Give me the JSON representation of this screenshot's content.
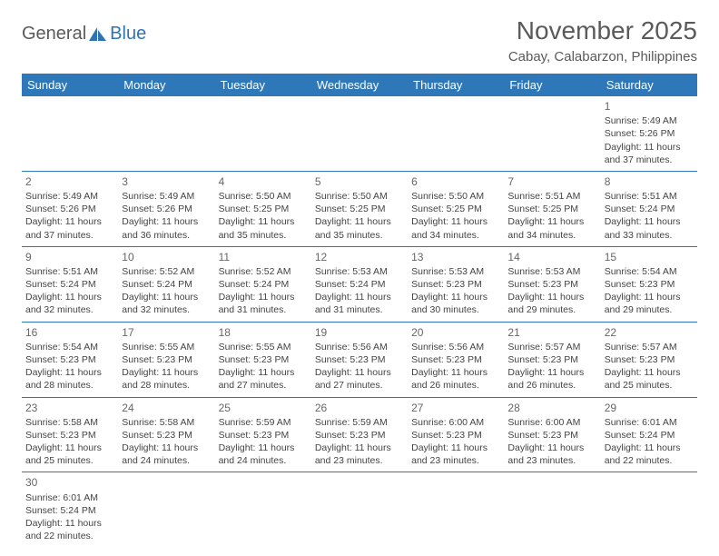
{
  "logo": {
    "part1": "General",
    "part2": "Blue"
  },
  "title": "November 2025",
  "location": "Cabay, Calabarzon, Philippines",
  "colors": {
    "header_bg": "#2e78ba",
    "header_text": "#ffffff",
    "border": "#2e78ba",
    "logo_blue": "#2e74b5",
    "logo_gray": "#5a5a5a",
    "text": "#444444"
  },
  "weekdays": [
    "Sunday",
    "Monday",
    "Tuesday",
    "Wednesday",
    "Thursday",
    "Friday",
    "Saturday"
  ],
  "weeks": [
    [
      null,
      null,
      null,
      null,
      null,
      null,
      {
        "n": "1",
        "sr": "5:49 AM",
        "ss": "5:26 PM",
        "dl": "11 hours and 37 minutes."
      }
    ],
    [
      {
        "n": "2",
        "sr": "5:49 AM",
        "ss": "5:26 PM",
        "dl": "11 hours and 37 minutes."
      },
      {
        "n": "3",
        "sr": "5:49 AM",
        "ss": "5:26 PM",
        "dl": "11 hours and 36 minutes."
      },
      {
        "n": "4",
        "sr": "5:50 AM",
        "ss": "5:25 PM",
        "dl": "11 hours and 35 minutes."
      },
      {
        "n": "5",
        "sr": "5:50 AM",
        "ss": "5:25 PM",
        "dl": "11 hours and 35 minutes."
      },
      {
        "n": "6",
        "sr": "5:50 AM",
        "ss": "5:25 PM",
        "dl": "11 hours and 34 minutes."
      },
      {
        "n": "7",
        "sr": "5:51 AM",
        "ss": "5:25 PM",
        "dl": "11 hours and 34 minutes."
      },
      {
        "n": "8",
        "sr": "5:51 AM",
        "ss": "5:24 PM",
        "dl": "11 hours and 33 minutes."
      }
    ],
    [
      {
        "n": "9",
        "sr": "5:51 AM",
        "ss": "5:24 PM",
        "dl": "11 hours and 32 minutes."
      },
      {
        "n": "10",
        "sr": "5:52 AM",
        "ss": "5:24 PM",
        "dl": "11 hours and 32 minutes."
      },
      {
        "n": "11",
        "sr": "5:52 AM",
        "ss": "5:24 PM",
        "dl": "11 hours and 31 minutes."
      },
      {
        "n": "12",
        "sr": "5:53 AM",
        "ss": "5:24 PM",
        "dl": "11 hours and 31 minutes."
      },
      {
        "n": "13",
        "sr": "5:53 AM",
        "ss": "5:23 PM",
        "dl": "11 hours and 30 minutes."
      },
      {
        "n": "14",
        "sr": "5:53 AM",
        "ss": "5:23 PM",
        "dl": "11 hours and 29 minutes."
      },
      {
        "n": "15",
        "sr": "5:54 AM",
        "ss": "5:23 PM",
        "dl": "11 hours and 29 minutes."
      }
    ],
    [
      {
        "n": "16",
        "sr": "5:54 AM",
        "ss": "5:23 PM",
        "dl": "11 hours and 28 minutes."
      },
      {
        "n": "17",
        "sr": "5:55 AM",
        "ss": "5:23 PM",
        "dl": "11 hours and 28 minutes."
      },
      {
        "n": "18",
        "sr": "5:55 AM",
        "ss": "5:23 PM",
        "dl": "11 hours and 27 minutes."
      },
      {
        "n": "19",
        "sr": "5:56 AM",
        "ss": "5:23 PM",
        "dl": "11 hours and 27 minutes."
      },
      {
        "n": "20",
        "sr": "5:56 AM",
        "ss": "5:23 PM",
        "dl": "11 hours and 26 minutes."
      },
      {
        "n": "21",
        "sr": "5:57 AM",
        "ss": "5:23 PM",
        "dl": "11 hours and 26 minutes."
      },
      {
        "n": "22",
        "sr": "5:57 AM",
        "ss": "5:23 PM",
        "dl": "11 hours and 25 minutes."
      }
    ],
    [
      {
        "n": "23",
        "sr": "5:58 AM",
        "ss": "5:23 PM",
        "dl": "11 hours and 25 minutes."
      },
      {
        "n": "24",
        "sr": "5:58 AM",
        "ss": "5:23 PM",
        "dl": "11 hours and 24 minutes."
      },
      {
        "n": "25",
        "sr": "5:59 AM",
        "ss": "5:23 PM",
        "dl": "11 hours and 24 minutes."
      },
      {
        "n": "26",
        "sr": "5:59 AM",
        "ss": "5:23 PM",
        "dl": "11 hours and 23 minutes."
      },
      {
        "n": "27",
        "sr": "6:00 AM",
        "ss": "5:23 PM",
        "dl": "11 hours and 23 minutes."
      },
      {
        "n": "28",
        "sr": "6:00 AM",
        "ss": "5:23 PM",
        "dl": "11 hours and 23 minutes."
      },
      {
        "n": "29",
        "sr": "6:01 AM",
        "ss": "5:24 PM",
        "dl": "11 hours and 22 minutes."
      }
    ],
    [
      {
        "n": "30",
        "sr": "6:01 AM",
        "ss": "5:24 PM",
        "dl": "11 hours and 22 minutes."
      },
      null,
      null,
      null,
      null,
      null,
      null
    ]
  ],
  "labels": {
    "sunrise": "Sunrise: ",
    "sunset": "Sunset: ",
    "daylight": "Daylight: "
  }
}
